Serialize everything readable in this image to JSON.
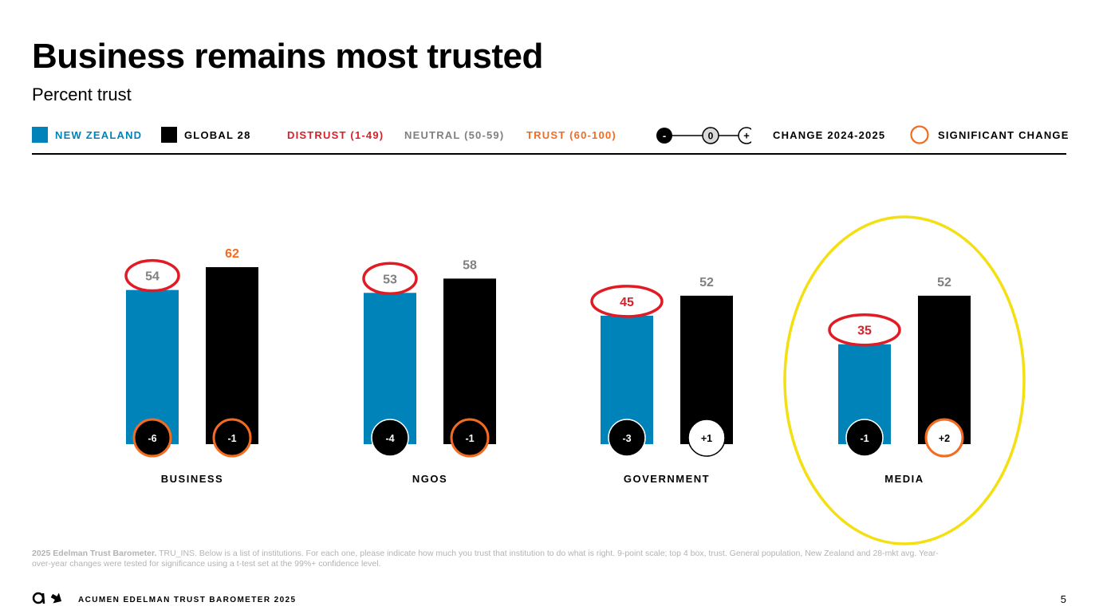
{
  "header": {
    "title": "Business remains most trusted",
    "subtitle": "Percent trust"
  },
  "legend": {
    "nz": "NEW ZEALAND",
    "global": "GLOBAL 28",
    "distrust": "DISTRUST (1-49)",
    "neutral": "NEUTRAL (50-59)",
    "trust": "TRUST (60-100)",
    "scale_minus": "-",
    "scale_zero": "0",
    "scale_plus": "+",
    "change": "CHANGE 2024-2025",
    "significant": "SIGNIFICANT CHANGE"
  },
  "colors": {
    "nz": "#0083b9",
    "global": "#000000",
    "distrust": "#d7202a",
    "neutral": "#808080",
    "trust": "#f26b21",
    "significant": "#f26b21",
    "annotation_circle": "#e01b24",
    "highlight_oval": "#f4e012"
  },
  "chart_data": {
    "type": "bar",
    "categories": [
      "BUSINESS",
      "NGOS",
      "GOVERNMENT",
      "MEDIA"
    ],
    "series": [
      {
        "name": "NEW ZEALAND",
        "values": [
          54,
          53,
          45,
          35
        ],
        "change": [
          "-6",
          "-4",
          "-3",
          "-1"
        ],
        "significant": [
          true,
          false,
          false,
          false
        ]
      },
      {
        "name": "GLOBAL 28",
        "values": [
          62,
          58,
          52,
          52
        ],
        "change": [
          "-1",
          "-1",
          "+1",
          "+2"
        ],
        "significant": [
          true,
          true,
          false,
          true
        ]
      }
    ],
    "ylim": [
      0,
      100
    ],
    "value_color_bands": {
      "distrust": [
        1,
        49
      ],
      "neutral": [
        50,
        59
      ],
      "trust": [
        60,
        100
      ]
    },
    "annotations": {
      "circled_values": "NEW ZEALAND values",
      "highlighted_category": "MEDIA"
    }
  },
  "footnote": {
    "bold": "2025 Edelman Trust Barometer.",
    "text": " TRU_INS. Below is a list of institutions. For each one, please indicate how much you trust that institution to do what is right. 9-point scale; top 4 box, trust. General population, New Zealand and 28-mkt avg. Year-over-year changes were tested for significance using a t-test set at the 99%+ confidence level."
  },
  "footer": {
    "brand": "ACUMEN EDELMAN TRUST BAROMETER 2025",
    "page": "5"
  }
}
